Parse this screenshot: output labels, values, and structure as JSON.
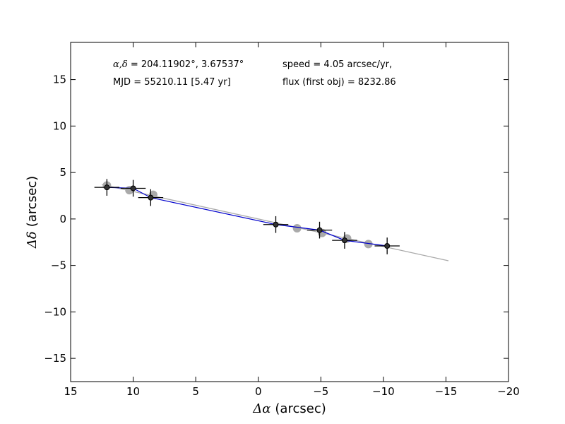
{
  "chart_data": {
    "type": "scatter",
    "xlabel_symbol": "Δα",
    "xlabel_unit": "(arcsec)",
    "ylabel_symbol": "Δδ",
    "ylabel_unit": "(arcsec)",
    "xlim": [
      15,
      -20
    ],
    "ylim": [
      -17.5,
      19.0
    ],
    "x_ticks": [
      15,
      10,
      5,
      0,
      -5,
      -10,
      -15,
      -20
    ],
    "y_ticks": [
      -15,
      -10,
      -5,
      0,
      5,
      10,
      15
    ],
    "x_tick_labels": [
      "15",
      "10",
      "5",
      "0",
      "−5",
      "−10",
      "−15",
      "−20"
    ],
    "y_tick_labels": [
      "−15",
      "−10",
      "−5",
      "0",
      "5",
      "10",
      "15"
    ],
    "grid": false,
    "annotations": {
      "coords_symbols": "α,δ",
      "coords_value": " = 204.11902°, 3.67537°",
      "mjd": "MJD = 55210.11 [5.47 yr]",
      "speed": "speed = 4.05 arcsec/yr,",
      "flux": "flux (first obj) = 8232.86"
    },
    "series": [
      {
        "role": "observations",
        "color": "#000000",
        "fill": "#333333",
        "points": [
          {
            "x": 12.1,
            "y": 3.4,
            "xerr": 1.0,
            "yerr": 0.9
          },
          {
            "x": 10.0,
            "y": 3.3,
            "xerr": 1.0,
            "yerr": 0.9
          },
          {
            "x": 8.6,
            "y": 2.3,
            "xerr": 1.0,
            "yerr": 0.9
          },
          {
            "x": -1.4,
            "y": -0.6,
            "xerr": 1.0,
            "yerr": 0.9
          },
          {
            "x": -4.9,
            "y": -1.2,
            "xerr": 1.0,
            "yerr": 0.9
          },
          {
            "x": -6.9,
            "y": -2.3,
            "xerr": 1.0,
            "yerr": 0.9
          },
          {
            "x": -10.3,
            "y": -2.9,
            "xerr": 1.0,
            "yerr": 0.9
          }
        ]
      },
      {
        "role": "model-points",
        "color": "#aaaaaa",
        "points": [
          {
            "x": 12.1,
            "y": 3.6
          },
          {
            "x": 10.3,
            "y": 3.1
          },
          {
            "x": 8.4,
            "y": 2.6
          },
          {
            "x": -3.1,
            "y": -1.0
          },
          {
            "x": -5.1,
            "y": -1.5
          },
          {
            "x": -7.1,
            "y": -2.1
          },
          {
            "x": -8.8,
            "y": -2.7
          }
        ]
      },
      {
        "role": "model-line",
        "color": "#aaaaaa",
        "points": [
          {
            "x": 12.5,
            "y": 3.7
          },
          {
            "x": -15.2,
            "y": -4.5
          }
        ]
      },
      {
        "role": "connecting-line",
        "color": "#0000cc",
        "points": [
          {
            "x": 12.1,
            "y": 3.4
          },
          {
            "x": 10.0,
            "y": 3.3
          },
          {
            "x": 8.6,
            "y": 2.3
          },
          {
            "x": -1.4,
            "y": -0.6
          },
          {
            "x": -4.9,
            "y": -1.2
          },
          {
            "x": -6.9,
            "y": -2.3
          },
          {
            "x": -10.3,
            "y": -2.9
          }
        ]
      }
    ]
  }
}
